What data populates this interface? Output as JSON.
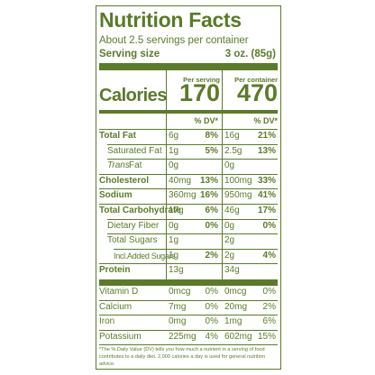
{
  "title": "Nutrition Facts",
  "servings": "About 2.5 servings per container",
  "serving_size": {
    "label": "Serving size",
    "value": "3 oz. (85g)"
  },
  "columns": [
    "Per serving",
    "Per container"
  ],
  "calories": {
    "label": "Calories",
    "values": [
      "170",
      "470"
    ]
  },
  "dv_header": [
    "% DV*",
    "% DV*"
  ],
  "nutrients": [
    {
      "name": "Total Fat",
      "style": "bold",
      "serving": [
        "6g",
        "8%"
      ],
      "container": [
        "16g",
        "21%"
      ]
    },
    {
      "name": "Saturated Fat",
      "style": "indent",
      "serving": [
        "1g",
        "5%"
      ],
      "container": [
        "2.5g",
        "13%"
      ]
    },
    {
      "name_italic": "Trans",
      "name": "Fat",
      "style": "indent",
      "serving": [
        "0g"
      ],
      "container": [
        "0g"
      ]
    },
    {
      "name": "Cholesterol",
      "style": "bold",
      "serving": [
        "40mg",
        "13%"
      ],
      "container": [
        "100mg",
        "33%"
      ]
    },
    {
      "name": "Sodium",
      "style": "bold",
      "serving": [
        "360mg",
        "16%"
      ],
      "container": [
        "950mg",
        "41%"
      ]
    },
    {
      "name": "Total Carbohydrate",
      "style": "bold",
      "serving": [
        "17g",
        "6%"
      ],
      "container": [
        "46g",
        "17%"
      ]
    },
    {
      "name": "Dietary Fiber",
      "style": "indent",
      "serving": [
        "0g",
        "0%"
      ],
      "container": [
        "0g",
        "0%"
      ]
    },
    {
      "name": "Total Sugars",
      "style": "indent",
      "serving": [
        "1g"
      ],
      "container": [
        "2g"
      ]
    },
    {
      "name": "Incl.Added Sugars",
      "style": "indent2",
      "serving": [
        "1g",
        "2%"
      ],
      "container": [
        "2g",
        "4%"
      ]
    },
    {
      "name": "Protein",
      "style": "bold",
      "serving": [
        "13g"
      ],
      "container": [
        "34g"
      ]
    }
  ],
  "vitamins": [
    {
      "name": "Vitamin D",
      "serving": [
        "0mcg",
        "0%"
      ],
      "container": [
        "0mcg",
        "0%"
      ]
    },
    {
      "name": "Calcium",
      "serving": [
        "7mg",
        "0%"
      ],
      "container": [
        "20mg",
        "2%"
      ]
    },
    {
      "name": "Iron",
      "serving": [
        "0mg",
        "0%"
      ],
      "container": [
        "1mg",
        "6%"
      ]
    },
    {
      "name": "Potassium",
      "serving": [
        "225mg",
        "4%"
      ],
      "container": [
        "602mg",
        "15%"
      ]
    }
  ],
  "footnote": "*The % Daily Value (DV) tells you how much a nutrient in a serving of food contributes to a daily diet. 2,000 calories a day is used for general nutrition advice."
}
